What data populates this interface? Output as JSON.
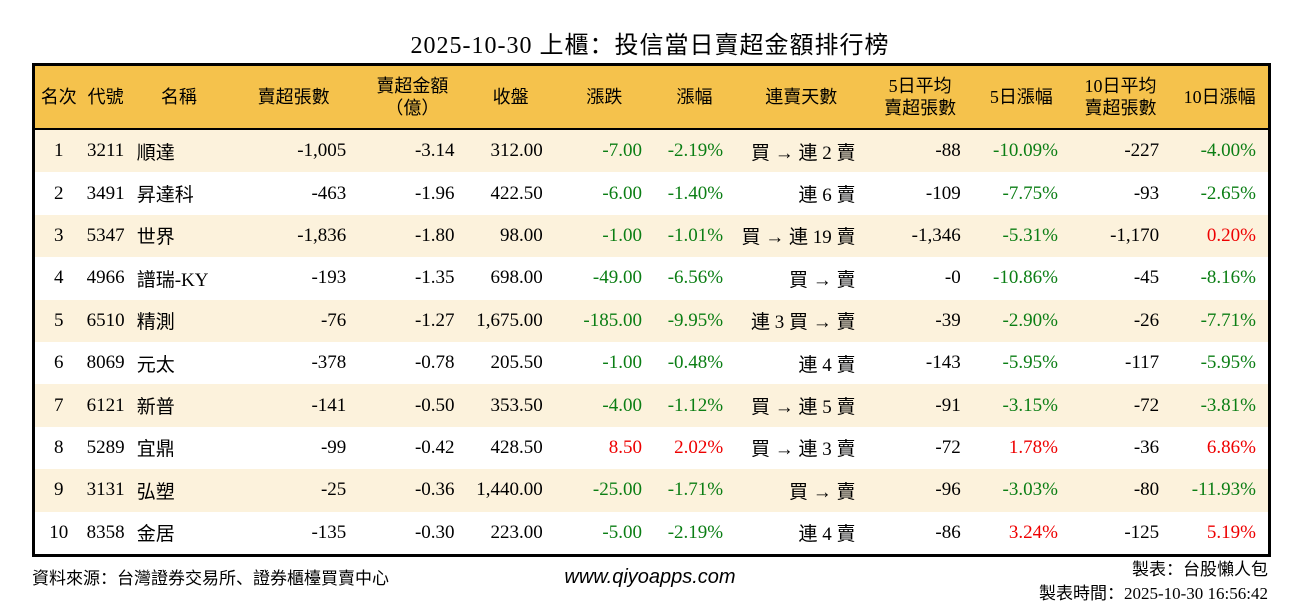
{
  "title": "2025-10-30 上櫃：投信當日賣超金額排行榜",
  "colors": {
    "header_bg": "#F5C24C",
    "row_alt_bg": "#FCF2DC",
    "row_bg": "#FFFFFF",
    "positive_red": "#EE0000",
    "negative_green": "#0B7E14",
    "border": "#000000"
  },
  "table": {
    "headers": [
      {
        "id": "rank",
        "lines": [
          "名次"
        ]
      },
      {
        "id": "code",
        "lines": [
          "代號"
        ]
      },
      {
        "id": "name",
        "lines": [
          "名稱"
        ]
      },
      {
        "id": "sell_shares",
        "lines": [
          "賣超張數"
        ]
      },
      {
        "id": "sell_amount",
        "lines": [
          "賣超金額",
          "（億）"
        ]
      },
      {
        "id": "close",
        "lines": [
          "收盤"
        ]
      },
      {
        "id": "change",
        "lines": [
          "漲跌"
        ]
      },
      {
        "id": "change_pct",
        "lines": [
          "漲幅"
        ]
      },
      {
        "id": "streak",
        "lines": [
          "連賣天數"
        ]
      },
      {
        "id": "avg5",
        "lines": [
          "5日平均",
          "賣超張數"
        ]
      },
      {
        "id": "pct5",
        "lines": [
          "5日漲幅"
        ]
      },
      {
        "id": "avg10",
        "lines": [
          "10日平均",
          "賣超張數"
        ]
      },
      {
        "id": "pct10",
        "lines": [
          "10日漲幅"
        ]
      }
    ],
    "rows": [
      {
        "rank": "1",
        "code": "3211",
        "name": "順達",
        "sell_shares": "-1,005",
        "sell_amount": "-3.14",
        "close": "312.00",
        "change": {
          "t": "-7.00",
          "c": "down"
        },
        "change_pct": {
          "t": "-2.19%",
          "c": "down"
        },
        "streak": "買 → 連 2 賣",
        "avg5": "-88",
        "pct5": {
          "t": "-10.09%",
          "c": "down"
        },
        "avg10": "-227",
        "pct10": {
          "t": "-4.00%",
          "c": "down"
        }
      },
      {
        "rank": "2",
        "code": "3491",
        "name": "昇達科",
        "sell_shares": "-463",
        "sell_amount": "-1.96",
        "close": "422.50",
        "change": {
          "t": "-6.00",
          "c": "down"
        },
        "change_pct": {
          "t": "-1.40%",
          "c": "down"
        },
        "streak": "連 6 賣",
        "avg5": "-109",
        "pct5": {
          "t": "-7.75%",
          "c": "down"
        },
        "avg10": "-93",
        "pct10": {
          "t": "-2.65%",
          "c": "down"
        }
      },
      {
        "rank": "3",
        "code": "5347",
        "name": "世界",
        "sell_shares": "-1,836",
        "sell_amount": "-1.80",
        "close": "98.00",
        "change": {
          "t": "-1.00",
          "c": "down"
        },
        "change_pct": {
          "t": "-1.01%",
          "c": "down"
        },
        "streak": "買 → 連 19 賣",
        "avg5": "-1,346",
        "pct5": {
          "t": "-5.31%",
          "c": "down"
        },
        "avg10": "-1,170",
        "pct10": {
          "t": "0.20%",
          "c": "up"
        }
      },
      {
        "rank": "4",
        "code": "4966",
        "name": "譜瑞-KY",
        "sell_shares": "-193",
        "sell_amount": "-1.35",
        "close": "698.00",
        "change": {
          "t": "-49.00",
          "c": "down"
        },
        "change_pct": {
          "t": "-6.56%",
          "c": "down"
        },
        "streak": "買 → 賣",
        "avg5": "-0",
        "pct5": {
          "t": "-10.86%",
          "c": "down"
        },
        "avg10": "-45",
        "pct10": {
          "t": "-8.16%",
          "c": "down"
        }
      },
      {
        "rank": "5",
        "code": "6510",
        "name": "精測",
        "sell_shares": "-76",
        "sell_amount": "-1.27",
        "close": "1,675.00",
        "change": {
          "t": "-185.00",
          "c": "down"
        },
        "change_pct": {
          "t": "-9.95%",
          "c": "down"
        },
        "streak": "連 3 買 → 賣",
        "avg5": "-39",
        "pct5": {
          "t": "-2.90%",
          "c": "down"
        },
        "avg10": "-26",
        "pct10": {
          "t": "-7.71%",
          "c": "down"
        }
      },
      {
        "rank": "6",
        "code": "8069",
        "name": "元太",
        "sell_shares": "-378",
        "sell_amount": "-0.78",
        "close": "205.50",
        "change": {
          "t": "-1.00",
          "c": "down"
        },
        "change_pct": {
          "t": "-0.48%",
          "c": "down"
        },
        "streak": "連 4 賣",
        "avg5": "-143",
        "pct5": {
          "t": "-5.95%",
          "c": "down"
        },
        "avg10": "-117",
        "pct10": {
          "t": "-5.95%",
          "c": "down"
        }
      },
      {
        "rank": "7",
        "code": "6121",
        "name": "新普",
        "sell_shares": "-141",
        "sell_amount": "-0.50",
        "close": "353.50",
        "change": {
          "t": "-4.00",
          "c": "down"
        },
        "change_pct": {
          "t": "-1.12%",
          "c": "down"
        },
        "streak": "買 → 連 5 賣",
        "avg5": "-91",
        "pct5": {
          "t": "-3.15%",
          "c": "down"
        },
        "avg10": "-72",
        "pct10": {
          "t": "-3.81%",
          "c": "down"
        }
      },
      {
        "rank": "8",
        "code": "5289",
        "name": "宜鼎",
        "sell_shares": "-99",
        "sell_amount": "-0.42",
        "close": "428.50",
        "change": {
          "t": "8.50",
          "c": "up"
        },
        "change_pct": {
          "t": "2.02%",
          "c": "up"
        },
        "streak": "買 → 連 3 賣",
        "avg5": "-72",
        "pct5": {
          "t": "1.78%",
          "c": "up"
        },
        "avg10": "-36",
        "pct10": {
          "t": "6.86%",
          "c": "up"
        }
      },
      {
        "rank": "9",
        "code": "3131",
        "name": "弘塑",
        "sell_shares": "-25",
        "sell_amount": "-0.36",
        "close": "1,440.00",
        "change": {
          "t": "-25.00",
          "c": "down"
        },
        "change_pct": {
          "t": "-1.71%",
          "c": "down"
        },
        "streak": "買 → 賣",
        "avg5": "-96",
        "pct5": {
          "t": "-3.03%",
          "c": "down"
        },
        "avg10": "-80",
        "pct10": {
          "t": "-11.93%",
          "c": "down"
        }
      },
      {
        "rank": "10",
        "code": "8358",
        "name": "金居",
        "sell_shares": "-135",
        "sell_amount": "-0.30",
        "close": "223.00",
        "change": {
          "t": "-5.00",
          "c": "down"
        },
        "change_pct": {
          "t": "-2.19%",
          "c": "down"
        },
        "streak": "連 4 賣",
        "avg5": "-86",
        "pct5": {
          "t": "3.24%",
          "c": "up"
        },
        "avg10": "-125",
        "pct10": {
          "t": "5.19%",
          "c": "up"
        }
      }
    ]
  },
  "footer": {
    "source": "資料來源：台灣證券交易所、證券櫃檯買賣中心",
    "website": "www.qiyoapps.com",
    "maker": "製表：台股懶人包",
    "made_at": "製表時間：2025-10-30 16:56:42"
  },
  "chart_data": {
    "type": "table",
    "title": "2025-10-30 上櫃：投信當日賣超金額排行榜",
    "columns": [
      "名次",
      "代號",
      "名稱",
      "賣超張數",
      "賣超金額（億）",
      "收盤",
      "漲跌",
      "漲幅",
      "連賣天數",
      "5日平均賣超張數",
      "5日漲幅",
      "10日平均賣超張數",
      "10日漲幅"
    ],
    "rows": [
      [
        "1",
        "3211",
        "順達",
        "-1,005",
        "-3.14",
        "312.00",
        "-7.00",
        "-2.19%",
        "買 → 連 2 賣",
        "-88",
        "-10.09%",
        "-227",
        "-4.00%"
      ],
      [
        "2",
        "3491",
        "昇達科",
        "-463",
        "-1.96",
        "422.50",
        "-6.00",
        "-1.40%",
        "連 6 賣",
        "-109",
        "-7.75%",
        "-93",
        "-2.65%"
      ],
      [
        "3",
        "5347",
        "世界",
        "-1,836",
        "-1.80",
        "98.00",
        "-1.00",
        "-1.01%",
        "買 → 連 19 賣",
        "-1,346",
        "-5.31%",
        "-1,170",
        "0.20%"
      ],
      [
        "4",
        "4966",
        "譜瑞-KY",
        "-193",
        "-1.35",
        "698.00",
        "-49.00",
        "-6.56%",
        "買 → 賣",
        "-0",
        "-10.86%",
        "-45",
        "-8.16%"
      ],
      [
        "5",
        "6510",
        "精測",
        "-76",
        "-1.27",
        "1,675.00",
        "-185.00",
        "-9.95%",
        "連 3 買 → 賣",
        "-39",
        "-2.90%",
        "-26",
        "-7.71%"
      ],
      [
        "6",
        "8069",
        "元太",
        "-378",
        "-0.78",
        "205.50",
        "-1.00",
        "-0.48%",
        "連 4 賣",
        "-143",
        "-5.95%",
        "-117",
        "-5.95%"
      ],
      [
        "7",
        "6121",
        "新普",
        "-141",
        "-0.50",
        "353.50",
        "-4.00",
        "-1.12%",
        "買 → 連 5 賣",
        "-91",
        "-3.15%",
        "-72",
        "-3.81%"
      ],
      [
        "8",
        "5289",
        "宜鼎",
        "-99",
        "-0.42",
        "428.50",
        "8.50",
        "2.02%",
        "買 → 連 3 賣",
        "-72",
        "1.78%",
        "-36",
        "6.86%"
      ],
      [
        "9",
        "3131",
        "弘塑",
        "-25",
        "-0.36",
        "1,440.00",
        "-25.00",
        "-1.71%",
        "買 → 賣",
        "-96",
        "-3.03%",
        "-80",
        "-11.93%"
      ],
      [
        "10",
        "8358",
        "金居",
        "-135",
        "-0.30",
        "223.00",
        "-5.00",
        "-2.19%",
        "連 4 賣",
        "-86",
        "3.24%",
        "-125",
        "5.19%"
      ]
    ]
  }
}
